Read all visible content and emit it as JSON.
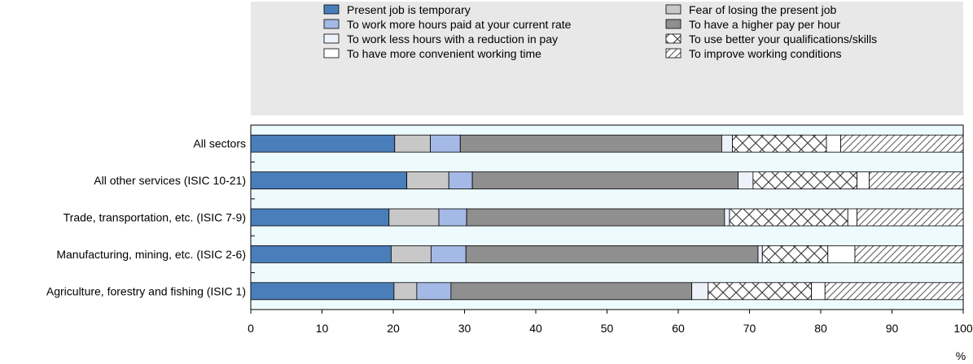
{
  "chart_data": {
    "type": "bar",
    "orientation": "horizontal",
    "stacked": true,
    "xunit": "%",
    "xlim": [
      0,
      100
    ],
    "xticks": [
      0,
      10,
      20,
      30,
      40,
      50,
      60,
      70,
      80,
      90,
      100
    ],
    "grid": false,
    "legend_position": "top",
    "plot_background": "#eefbfe",
    "legend_background": "#e8e8e8",
    "categories": [
      "All sectors",
      "All other services (ISIC 10-21)",
      "Trade, transportation, etc. (ISIC 7-9)",
      "Manufacturing, mining, etc. (ISIC 2-6)",
      "Agriculture, forestry and fishing (ISIC 1)"
    ],
    "series": [
      {
        "name": "Present job is temporary",
        "color": "#4a7ebb",
        "pattern": "solid",
        "values": [
          20.2,
          21.9,
          19.4,
          19.7,
          20.1
        ]
      },
      {
        "name": "Fear of losing the present job",
        "color": "#c8c8c8",
        "pattern": "solid",
        "values": [
          5.0,
          5.9,
          7.0,
          5.6,
          3.2
        ]
      },
      {
        "name": "To work more hours paid at your current rate",
        "color": "#a5b9e6",
        "pattern": "solid",
        "values": [
          4.2,
          3.3,
          3.9,
          4.9,
          4.8
        ]
      },
      {
        "name": "To have a higher pay per hour",
        "color": "#8f8f8f",
        "pattern": "solid",
        "values": [
          36.7,
          37.3,
          36.2,
          41.0,
          33.8
        ]
      },
      {
        "name": "To work less hours with a reduction in pay",
        "color": "#ecf1fa",
        "pattern": "solid",
        "values": [
          1.5,
          2.1,
          0.7,
          0.6,
          2.3
        ]
      },
      {
        "name": "To use better your qualifications/skills",
        "color": "#ffffff",
        "pattern": "cross",
        "values": [
          13.2,
          14.6,
          16.6,
          9.2,
          14.5
        ]
      },
      {
        "name": "To have more convenient working time",
        "color": "#ffffff",
        "pattern": "solid",
        "values": [
          2.0,
          1.7,
          1.3,
          3.8,
          1.9
        ]
      },
      {
        "name": "To improve working conditions",
        "color": "#ffffff",
        "pattern": "diag",
        "values": [
          17.2,
          13.2,
          14.9,
          15.2,
          19.4
        ]
      }
    ],
    "legend_order": [
      0,
      2,
      4,
      6,
      1,
      3,
      5,
      7
    ]
  }
}
